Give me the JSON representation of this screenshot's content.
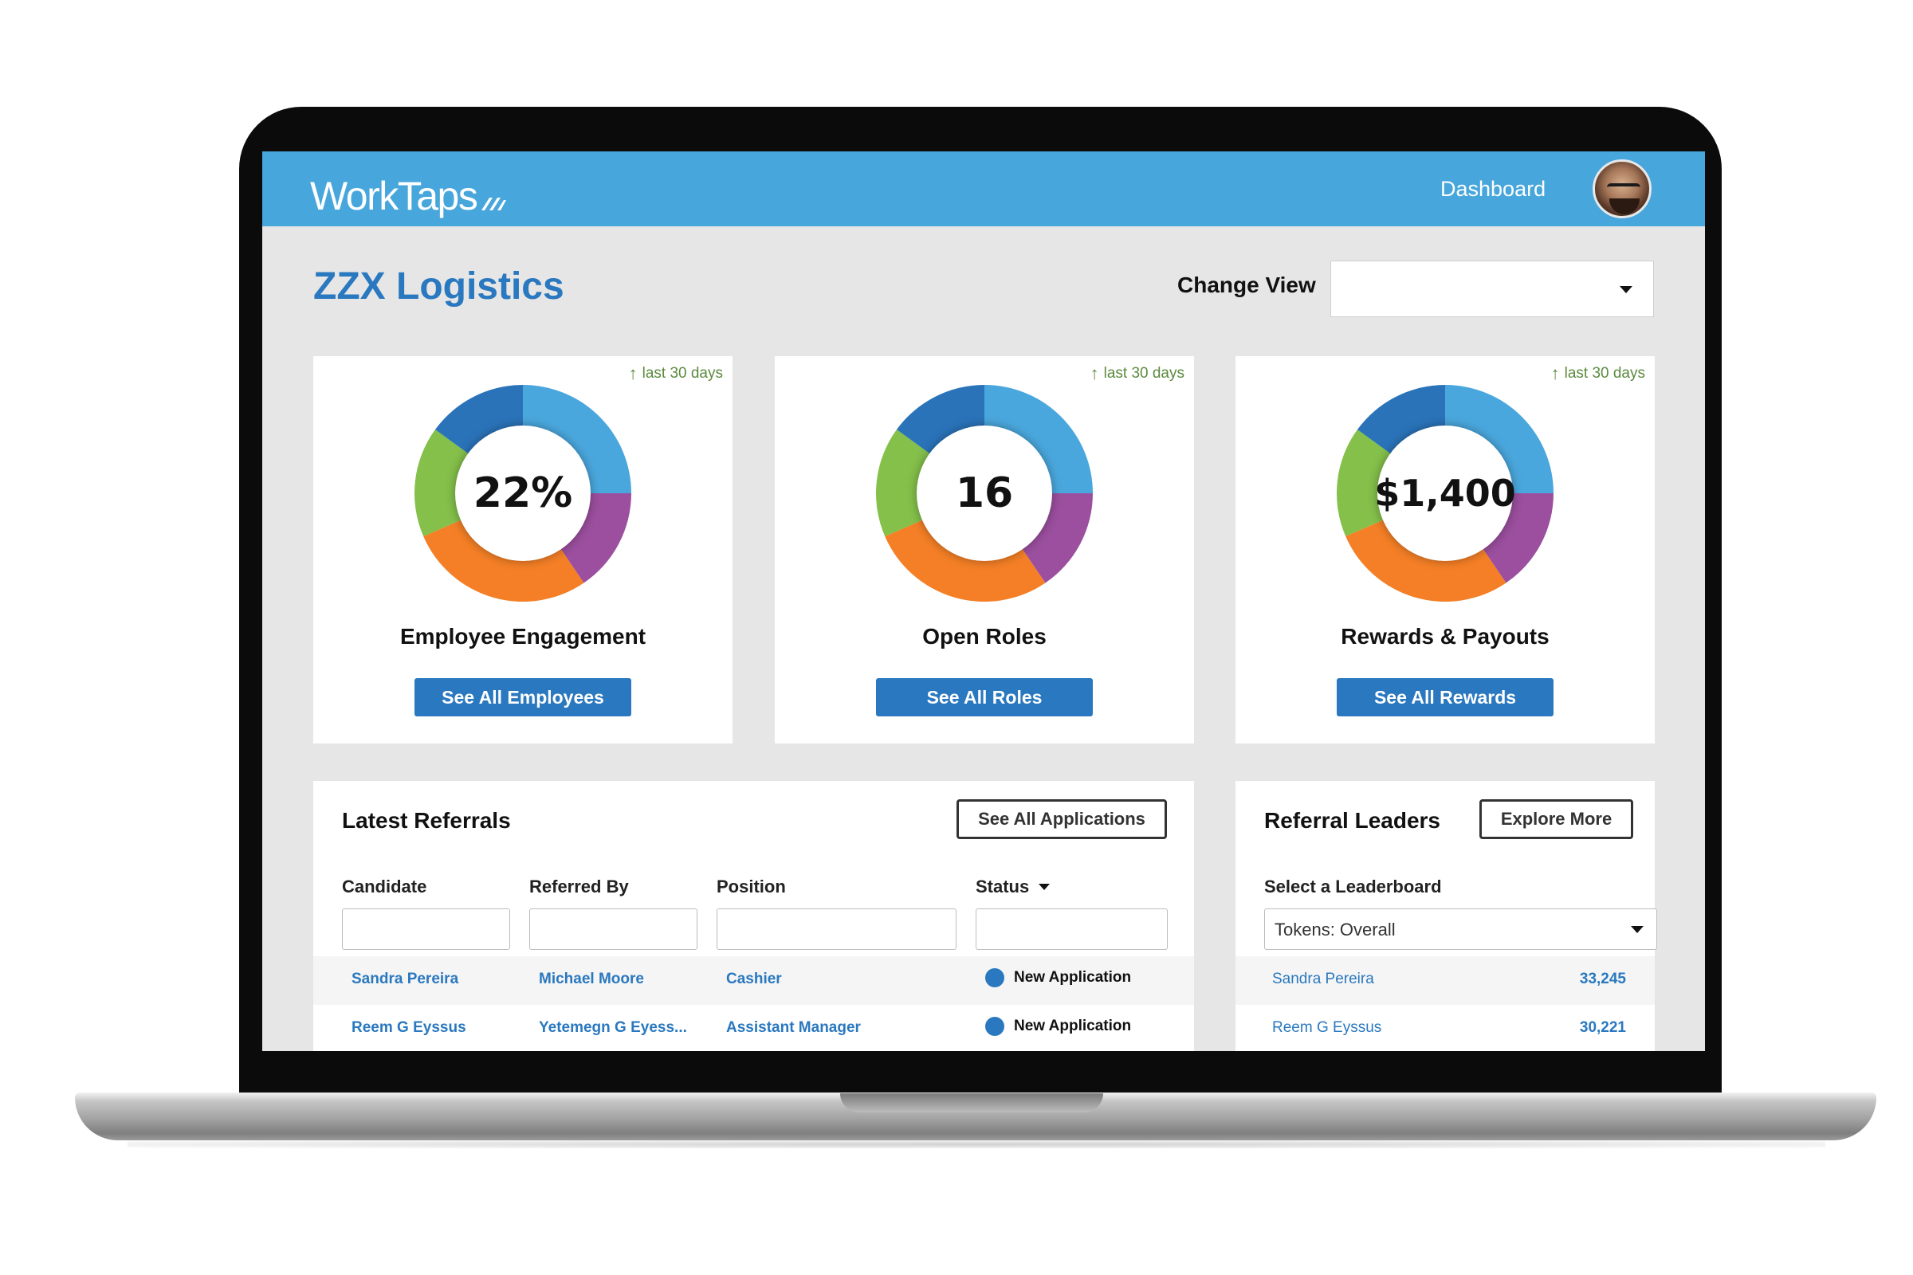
{
  "header": {
    "logo_text": "WorkTaps",
    "logo_mark": "worktaps-swoosh-icon",
    "nav_dashboard": "Dashboard",
    "avatar": "user-avatar",
    "color": "#47a6db"
  },
  "page": {
    "title": "ZZX Logistics",
    "change_view_label": "Change View",
    "change_view_value": ""
  },
  "cards": [
    {
      "trend": "last 30 days",
      "value": "22%",
      "label": "Employee Engagement",
      "button": "See All Employees"
    },
    {
      "trend": "last 30 days",
      "value": "16",
      "label": "Open Roles",
      "button": "See All Roles"
    },
    {
      "trend": "last 30 days",
      "value": "$1,400",
      "label": "Rewards & Payouts",
      "button": "See All Rewards"
    }
  ],
  "donut_segments": [
    {
      "color": "#4aa7dd",
      "fraction": 0.25
    },
    {
      "color": "#9b4f9e",
      "fraction": 0.155
    },
    {
      "color": "#f47f26",
      "fraction": 0.28
    },
    {
      "color": "#84c04a",
      "fraction": 0.165
    },
    {
      "color": "#2a73b9",
      "fraction": 0.15
    }
  ],
  "latest_referrals": {
    "title": "Latest Referrals",
    "see_all_button": "See All Applications",
    "columns": [
      "Candidate",
      "Referred By",
      "Position",
      "Status"
    ],
    "rows": [
      {
        "candidate": "Sandra Pereira",
        "referred_by": "Michael Moore",
        "position": "Cashier",
        "status": "New Application"
      },
      {
        "candidate": "Reem G Eyssus",
        "referred_by": "Yetemegn G Eyess...",
        "position": "Assistant Manager",
        "status": "New Application"
      }
    ]
  },
  "referral_leaders": {
    "title": "Referral Leaders",
    "explore_button": "Explore More",
    "select_label": "Select a Leaderboard",
    "select_value": "Tokens: Overall",
    "rows": [
      {
        "name": "Sandra Pereira",
        "score": "33,245"
      },
      {
        "name": "Reem G Eyssus",
        "score": "30,221"
      }
    ]
  },
  "colors": {
    "accent": "#2a78bf",
    "trend_green": "#5b8b3e",
    "background": "#e6e6e6"
  }
}
